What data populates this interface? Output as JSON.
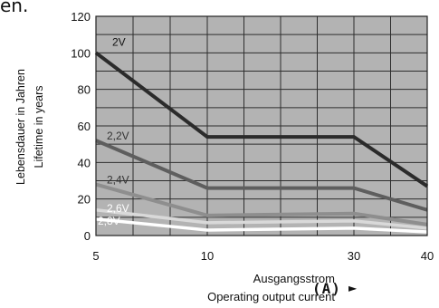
{
  "top_fragment": "en.",
  "x_axis": {
    "label_line1": "Ausgangsstrom",
    "label_line2": "Operating output current",
    "unit": "(A)",
    "arrow": "►"
  },
  "y_axis": {
    "label_line1": "Lebensdauer in Jahren",
    "label_line2": "Lifetime in years"
  },
  "chart_data": {
    "type": "line",
    "title": "",
    "xlabel": "Ausgangsstrom / Operating output current (A)",
    "ylabel": "Lebensdauer in Jahren / Lifetime in years",
    "xticks": [
      5,
      10,
      30,
      40
    ],
    "yticks": [
      0,
      20,
      40,
      60,
      80,
      100,
      120
    ],
    "xlim": [
      5,
      40
    ],
    "ylim": [
      0,
      120
    ],
    "grid": true,
    "background": "#b3b3b3",
    "series": [
      {
        "name": "2V",
        "color": "#2b2b2b",
        "x": [
          5,
          10,
          30,
          40
        ],
        "y": [
          100,
          54,
          54,
          27
        ]
      },
      {
        "name": "2,2V",
        "color": "#5e5e5e",
        "x": [
          5,
          10,
          30,
          40
        ],
        "y": [
          52,
          26,
          26,
          14
        ]
      },
      {
        "name": "2,4V",
        "color": "#8e8e8e",
        "x": [
          5,
          10,
          30,
          40
        ],
        "y": [
          28,
          11,
          12,
          6
        ]
      },
      {
        "name": "2,6V",
        "color": "#d9d9d9",
        "x": [
          5,
          10,
          30,
          40
        ],
        "y": [
          14,
          7,
          8,
          4
        ]
      },
      {
        "name": "2,8V",
        "color": "#ffffff",
        "x": [
          5,
          10,
          30,
          40
        ],
        "y": [
          9,
          3,
          4,
          2
        ]
      }
    ]
  }
}
